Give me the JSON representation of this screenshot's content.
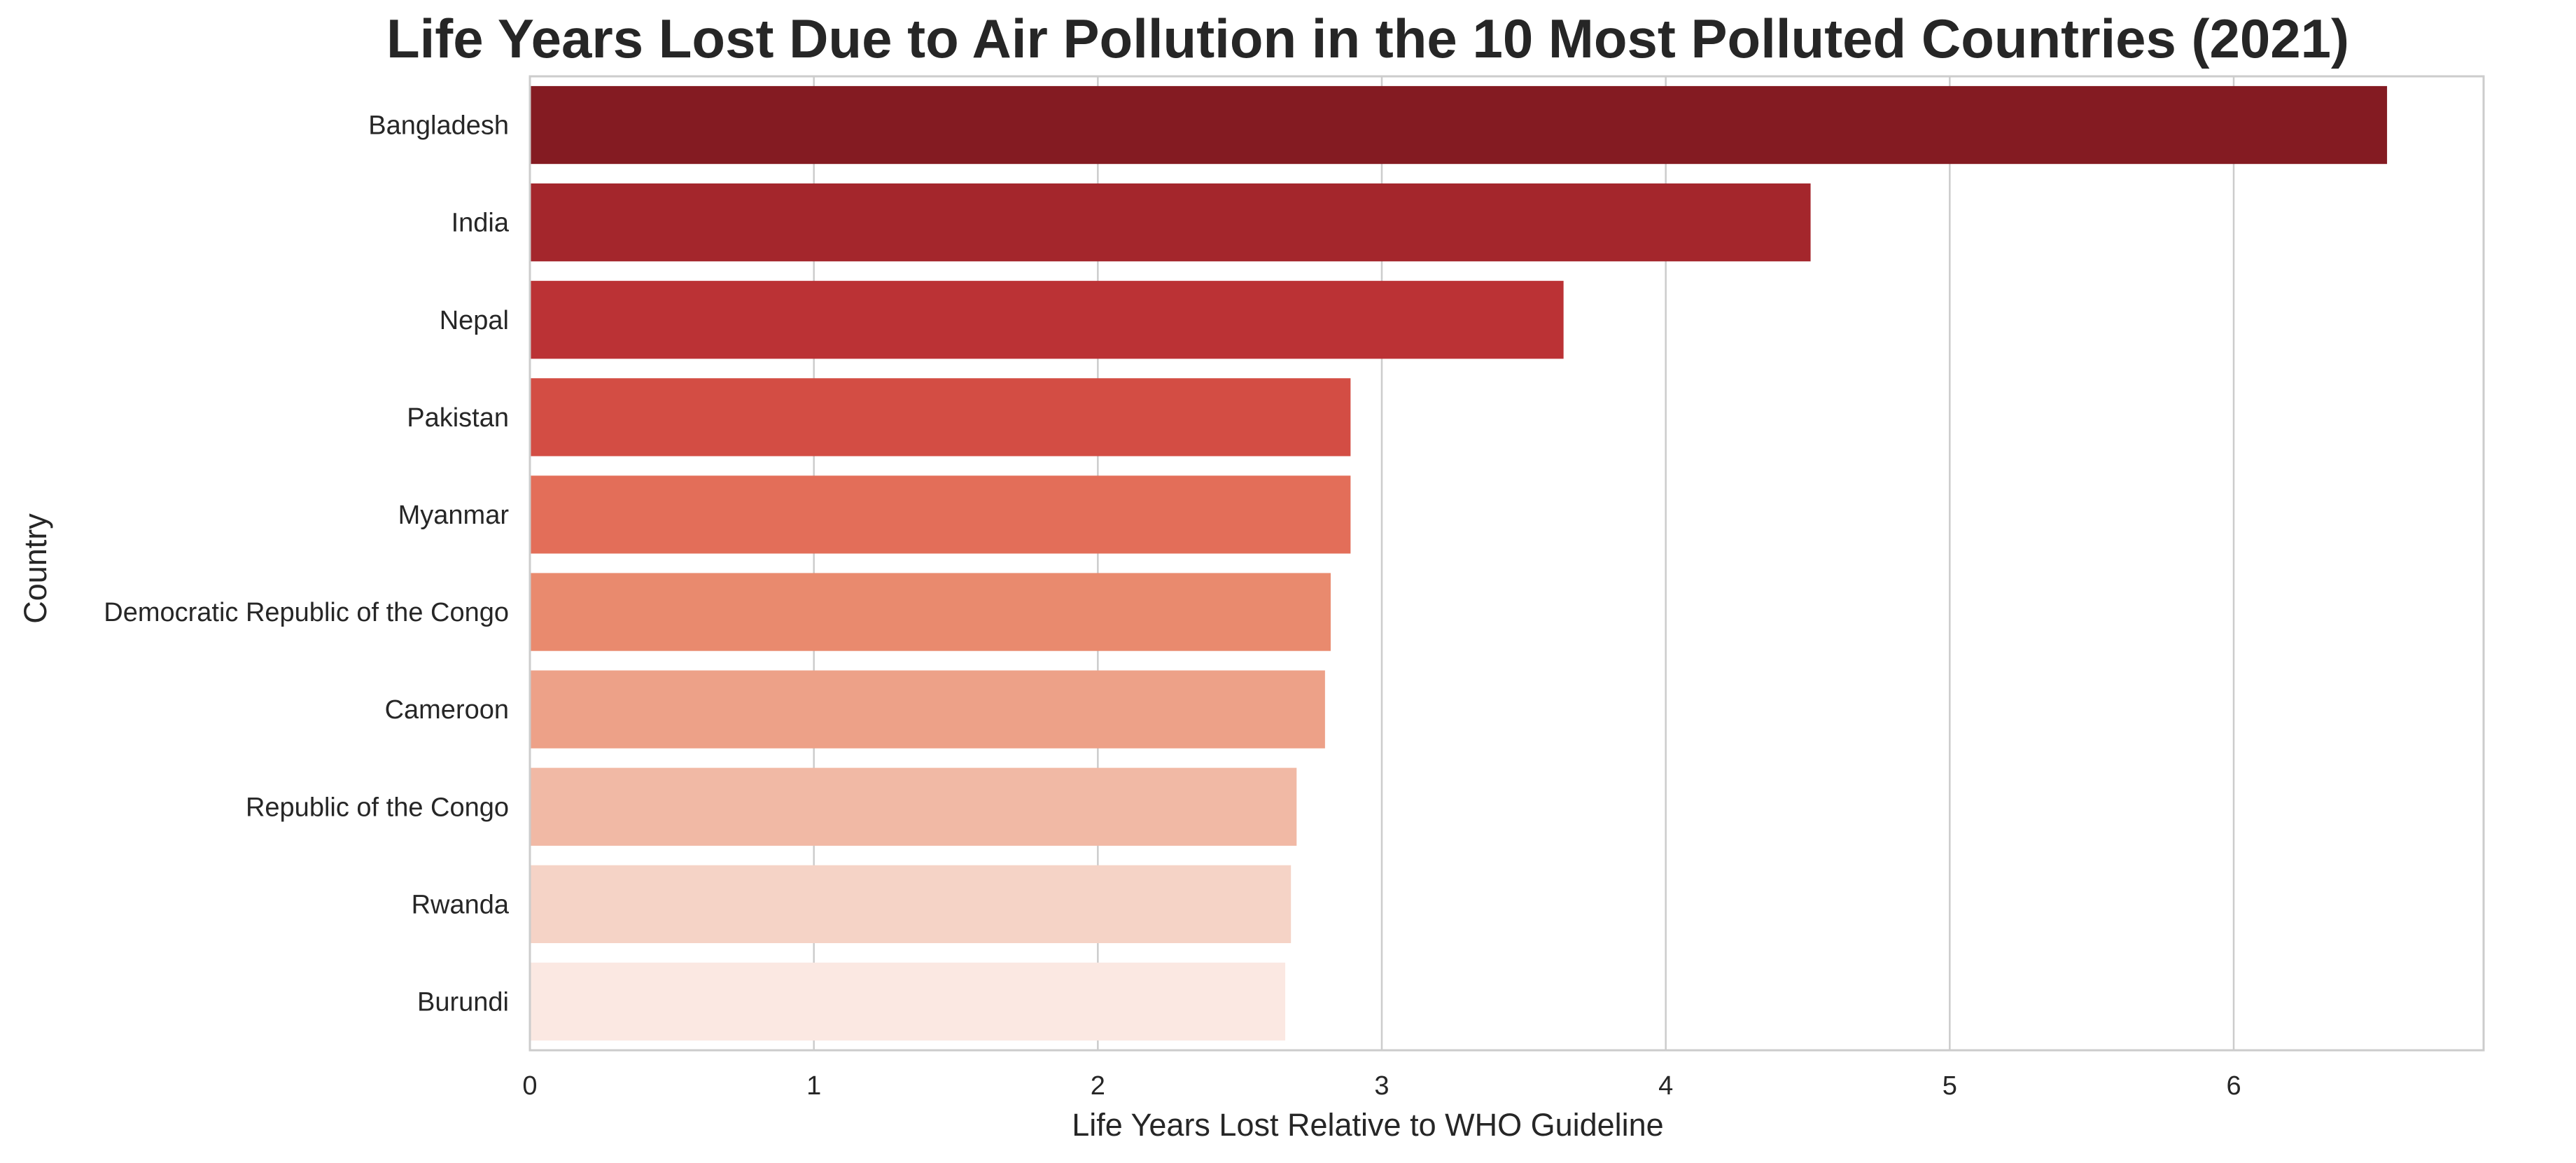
{
  "chart_data": {
    "type": "bar",
    "orientation": "horizontal",
    "title": "Life Years Lost Due to Air Pollution in the 10 Most Polluted Countries (2021)",
    "xlabel": "Life Years Lost Relative to WHO Guideline",
    "ylabel": "Country",
    "xlim": [
      0,
      6.88
    ],
    "xticks": [
      0,
      1,
      2,
      3,
      4,
      5,
      6
    ],
    "grid": "vertical",
    "categories": [
      "Bangladesh",
      "India",
      "Nepal",
      "Pakistan",
      "Myanmar",
      "Democratic Republic of the Congo",
      "Cameroon",
      "Republic of the Congo",
      "Rwanda",
      "Burundi"
    ],
    "values": [
      6.54,
      4.51,
      3.64,
      2.89,
      2.89,
      2.82,
      2.8,
      2.7,
      2.68,
      2.66
    ],
    "colors": [
      "#841b22",
      "#a4262c",
      "#bb3235",
      "#d34d44",
      "#e36e59",
      "#e98a6e",
      "#eda188",
      "#f1b9a5",
      "#f5d3c6",
      "#fbe8e2"
    ]
  }
}
